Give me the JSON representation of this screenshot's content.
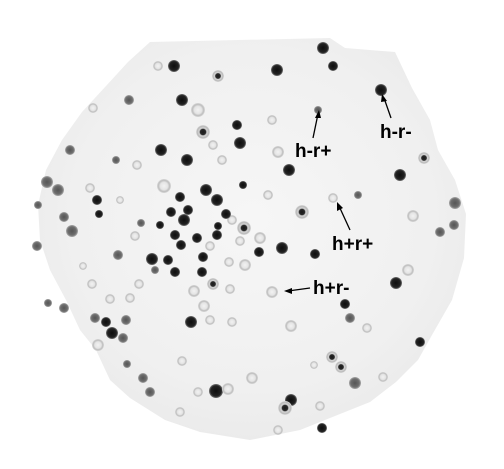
{
  "image": {
    "description_free": true,
    "colors": {
      "background": "#ffffff",
      "lawn": "#f1f1f1",
      "plaque_dark": "#1a1a1a",
      "plaque_mid": "#6a6a6a",
      "plaque_light": "#c8c8c8",
      "annotation": "#000000"
    }
  },
  "labels": {
    "top_right": "h-r-",
    "top_middle": "h-r+",
    "middle_right": "h+r+",
    "bottom_middle": "h+r-"
  }
}
